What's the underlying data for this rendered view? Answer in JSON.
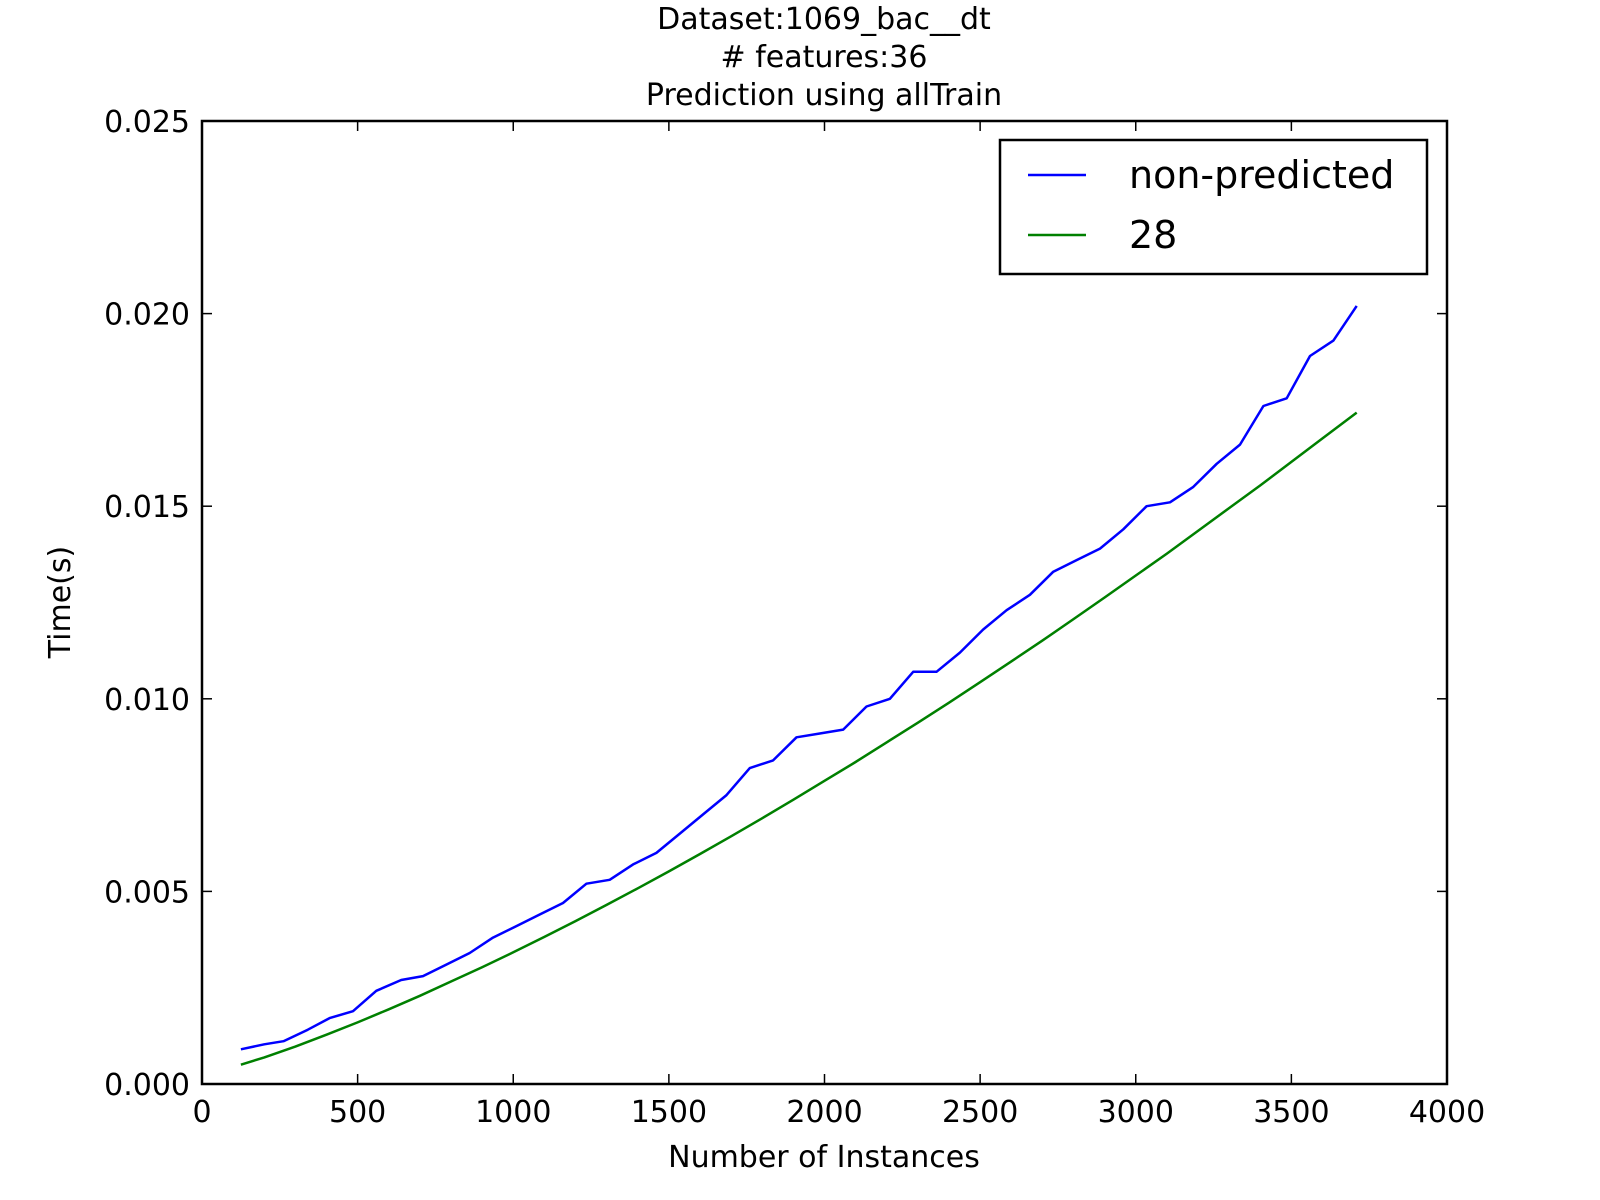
{
  "chart_data": {
    "type": "line",
    "title_lines": [
      "Dataset:1069_bac__dt",
      "# features:36",
      "Prediction using allTrain"
    ],
    "xlabel": "Number of Instances",
    "ylabel": "Time(s)",
    "xlim": [
      0,
      4000
    ],
    "ylim": [
      0,
      0.025
    ],
    "xticks": [
      0,
      500,
      1000,
      1500,
      2000,
      2500,
      3000,
      3500,
      4000
    ],
    "yticks": [
      0,
      0.005,
      0.01,
      0.015,
      0.02,
      0.025
    ],
    "xtick_labels": [
      "0",
      "500",
      "1000",
      "1500",
      "2000",
      "2500",
      "3000",
      "3500",
      "4000"
    ],
    "ytick_labels": [
      "0.000",
      "0.005",
      "0.010",
      "0.015",
      "0.020",
      "0.025"
    ],
    "grid": false,
    "legend_position": "top-right",
    "series": [
      {
        "name": "non-predicted",
        "color": "#0000ff",
        "x": [
          125,
          200,
          262,
          340,
          410,
          485,
          560,
          640,
          710,
          785,
          860,
          935,
          1010,
          1085,
          1160,
          1235,
          1310,
          1385,
          1460,
          1535,
          1610,
          1685,
          1760,
          1835,
          1910,
          1985,
          2060,
          2135,
          2210,
          2285,
          2360,
          2435,
          2510,
          2585,
          2660,
          2735,
          2810,
          2885,
          2960,
          3035,
          3110,
          3185,
          3260,
          3335,
          3410,
          3485,
          3560,
          3635,
          3710
        ],
        "y": [
          0.0009,
          0.00103,
          0.00111,
          0.00141,
          0.00171,
          0.00189,
          0.00242,
          0.0027,
          0.0028,
          0.0031,
          0.0034,
          0.0038,
          0.0041,
          0.0044,
          0.0047,
          0.0052,
          0.0053,
          0.0057,
          0.006,
          0.0065,
          0.007,
          0.0075,
          0.0082,
          0.0084,
          0.009,
          0.0091,
          0.0092,
          0.0098,
          0.01,
          0.0107,
          0.0107,
          0.0112,
          0.0118,
          0.0123,
          0.0127,
          0.0133,
          0.0136,
          0.0139,
          0.0144,
          0.015,
          0.0151,
          0.0155,
          0.0161,
          0.0166,
          0.0176,
          0.0178,
          0.0189,
          0.0193,
          0.0202
        ]
      },
      {
        "name": "28",
        "color": "#008000",
        "x": [
          125,
          200,
          300,
          400,
          500,
          600,
          700,
          800,
          900,
          1000,
          1100,
          1200,
          1300,
          1400,
          1500,
          1600,
          1700,
          1800,
          1900,
          2000,
          2100,
          2200,
          2300,
          2400,
          2500,
          2600,
          2700,
          2800,
          2900,
          3000,
          3100,
          3200,
          3300,
          3400,
          3500,
          3600,
          3710
        ],
        "y": [
          0.0005,
          0.00069,
          0.00097,
          0.00128,
          0.0016,
          0.00194,
          0.00229,
          0.00266,
          0.00303,
          0.00342,
          0.00382,
          0.00423,
          0.00465,
          0.00508,
          0.00552,
          0.00597,
          0.00643,
          0.0069,
          0.00738,
          0.00787,
          0.00836,
          0.00887,
          0.00938,
          0.0099,
          0.01043,
          0.01097,
          0.01151,
          0.01207,
          0.01263,
          0.0132,
          0.01377,
          0.01436,
          0.01495,
          0.01554,
          0.01615,
          0.01676,
          0.01743
        ]
      }
    ]
  }
}
